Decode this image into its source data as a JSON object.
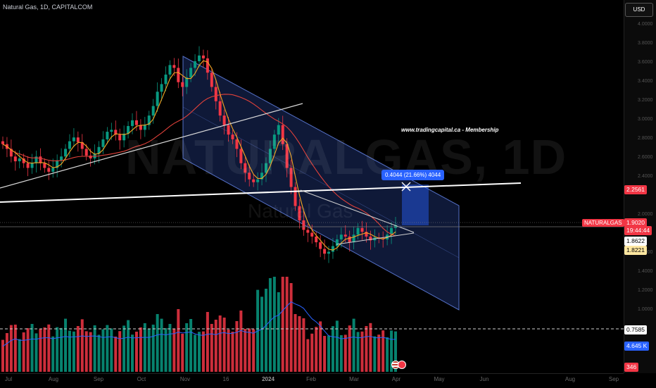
{
  "header": {
    "title": "Natural Gas, 1D, CAPITALCOM"
  },
  "watermark": {
    "main": "NATURALGAS, 1D",
    "sub": "Natural Gas"
  },
  "axis": {
    "currency": "USD",
    "price_ticks": [
      "4.0000",
      "3.8000",
      "3.6000",
      "3.4000",
      "3.2000",
      "3.0000",
      "2.8000",
      "2.6000",
      "2.4000",
      "2.0000",
      "1.6000",
      "1.4000",
      "1.2000",
      "1.0000"
    ],
    "time_ticks": [
      "Jul",
      "Aug",
      "Sep",
      "Oct",
      "Nov",
      "16",
      "2024",
      "Feb",
      "Mar",
      "Apr",
      "May",
      "Jun",
      "Aug",
      "Sep"
    ]
  },
  "labels": {
    "level_2256": "2.2561",
    "symbol": "NATURALGAS",
    "last_price": "1.9020",
    "countdown": "19:44:44",
    "level_1862": "1.8622",
    "level_1822": "1.8221",
    "vol_dashed": "0.7585",
    "vol_value": "4.645 K",
    "vol_count": "346"
  },
  "measure": {
    "text": "0.4044 (21.66%) 4044"
  },
  "annotation": "www.tradingcapital.ca - Membership",
  "colors": {
    "up": "#089981",
    "down": "#f23645",
    "ma_fast": "#f5a623",
    "ma_slow": "#e0413a",
    "channel": "#1c2e66",
    "accent": "#2962ff"
  },
  "chart_data": {
    "type": "candlestick",
    "symbol": "NATURALGAS",
    "title": "Natural Gas, 1D, CAPITALCOM",
    "ylim": [
      0.9,
      4.1
    ],
    "series": [
      {
        "values": [
          2.75,
          2.7,
          2.62,
          2.57,
          2.6,
          2.55,
          2.5,
          2.55,
          2.62,
          2.55,
          2.5,
          2.46,
          2.5,
          2.58,
          2.62,
          2.7,
          2.78,
          2.82,
          2.77,
          2.7,
          2.63,
          2.6,
          2.65,
          2.72,
          2.8,
          2.88,
          2.9,
          2.85,
          2.79,
          2.86,
          2.94,
          3.0,
          2.95,
          2.9,
          2.95,
          3.05,
          3.15,
          3.3,
          3.38,
          3.48,
          3.58,
          3.55,
          3.4,
          3.35,
          3.45,
          3.55,
          3.62,
          3.68,
          3.65,
          3.5,
          3.35,
          3.2,
          3.05,
          2.95,
          2.85,
          2.8,
          2.7,
          2.55,
          2.45,
          2.38,
          2.35,
          2.38,
          2.45,
          2.55,
          2.7,
          2.85,
          2.95,
          2.75,
          2.5,
          2.3,
          2.1,
          1.95,
          1.85,
          1.82,
          1.78,
          1.72,
          1.65,
          1.6,
          1.62,
          1.68,
          1.75,
          1.8,
          1.78,
          1.72,
          1.8,
          1.87,
          1.83,
          1.78,
          1.74,
          1.77,
          1.76,
          1.75,
          1.8,
          1.87,
          1.9
        ]
      }
    ],
    "indicators": [
      "moving average fast",
      "moving average slow",
      "volume"
    ],
    "current_price": 1.902
  }
}
